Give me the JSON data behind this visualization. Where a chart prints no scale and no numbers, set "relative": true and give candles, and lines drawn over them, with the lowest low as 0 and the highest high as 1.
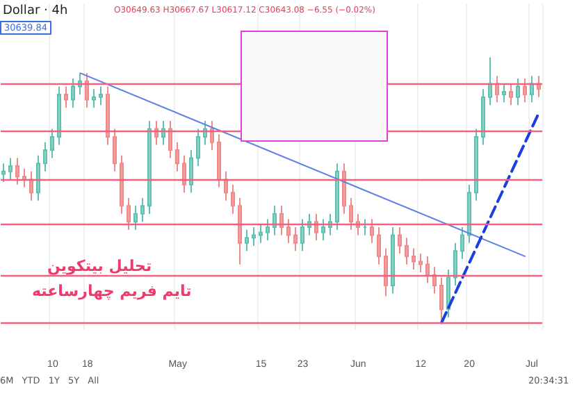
{
  "chart_data": {
    "type": "candlestick",
    "title": "Dollar · 4h",
    "relative": true,
    "categories": [
      null,
      null,
      null,
      null,
      null,
      null,
      null,
      "10",
      null,
      null,
      null,
      null,
      "18",
      null,
      null,
      null,
      null,
      null,
      null,
      null,
      null,
      null,
      null,
      null,
      null,
      "May",
      null,
      null,
      null,
      null,
      null,
      null,
      null,
      null,
      null,
      null,
      null,
      "15",
      null,
      null,
      null,
      null,
      null,
      "23",
      null,
      null,
      null,
      null,
      null,
      null,
      null,
      "Jun",
      null,
      null,
      null,
      null,
      null,
      null,
      null,
      null,
      "12",
      null,
      null,
      null,
      null,
      null,
      null,
      "20",
      null,
      null,
      null,
      null,
      null,
      null,
      null,
      null,
      "Jul",
      null
    ],
    "ohlc": [
      [
        0.56,
        0.6,
        0.53,
        0.57
      ],
      [
        0.57,
        0.62,
        0.54,
        0.59
      ],
      [
        0.59,
        0.62,
        0.52,
        0.55
      ],
      [
        0.55,
        0.58,
        0.51,
        0.54
      ],
      [
        0.54,
        0.57,
        0.46,
        0.49
      ],
      [
        0.49,
        0.63,
        0.46,
        0.6
      ],
      [
        0.6,
        0.68,
        0.57,
        0.65
      ],
      [
        0.65,
        0.73,
        0.62,
        0.7
      ],
      [
        0.7,
        0.89,
        0.67,
        0.86
      ],
      [
        0.86,
        0.89,
        0.81,
        0.84
      ],
      [
        0.84,
        0.92,
        0.81,
        0.89
      ],
      [
        0.89,
        0.94,
        0.86,
        0.91
      ],
      [
        0.91,
        0.94,
        0.81,
        0.84
      ],
      [
        0.84,
        0.88,
        0.81,
        0.85
      ],
      [
        0.85,
        0.89,
        0.82,
        0.86
      ],
      [
        0.86,
        0.89,
        0.67,
        0.7
      ],
      [
        0.7,
        0.73,
        0.57,
        0.6
      ],
      [
        0.6,
        0.63,
        0.41,
        0.44
      ],
      [
        0.44,
        0.47,
        0.35,
        0.38
      ],
      [
        0.38,
        0.44,
        0.35,
        0.41
      ],
      [
        0.41,
        0.47,
        0.38,
        0.44
      ],
      [
        0.44,
        0.76,
        0.41,
        0.73
      ],
      [
        0.73,
        0.76,
        0.67,
        0.7
      ],
      [
        0.7,
        0.76,
        0.67,
        0.73
      ],
      [
        0.73,
        0.76,
        0.62,
        0.65
      ],
      [
        0.65,
        0.68,
        0.57,
        0.6
      ],
      [
        0.6,
        0.63,
        0.49,
        0.52
      ],
      [
        0.52,
        0.65,
        0.49,
        0.62
      ],
      [
        0.62,
        0.73,
        0.59,
        0.7
      ],
      [
        0.7,
        0.76,
        0.67,
        0.73
      ],
      [
        0.73,
        0.76,
        0.65,
        0.68
      ],
      [
        0.68,
        0.71,
        0.51,
        0.54
      ],
      [
        0.54,
        0.57,
        0.46,
        0.49
      ],
      [
        0.49,
        0.52,
        0.41,
        0.44
      ],
      [
        0.44,
        0.47,
        0.22,
        0.3
      ],
      [
        0.3,
        0.35,
        0.27,
        0.32
      ],
      [
        0.32,
        0.36,
        0.29,
        0.33
      ],
      [
        0.33,
        0.37,
        0.3,
        0.34
      ],
      [
        0.34,
        0.39,
        0.31,
        0.36
      ],
      [
        0.36,
        0.44,
        0.33,
        0.41
      ],
      [
        0.41,
        0.44,
        0.33,
        0.36
      ],
      [
        0.36,
        0.39,
        0.3,
        0.33
      ],
      [
        0.33,
        0.36,
        0.27,
        0.3
      ],
      [
        0.3,
        0.39,
        0.27,
        0.36
      ],
      [
        0.36,
        0.41,
        0.33,
        0.38
      ],
      [
        0.38,
        0.41,
        0.31,
        0.34
      ],
      [
        0.34,
        0.39,
        0.31,
        0.36
      ],
      [
        0.36,
        0.41,
        0.33,
        0.38
      ],
      [
        0.38,
        0.6,
        0.35,
        0.57
      ],
      [
        0.57,
        0.6,
        0.41,
        0.44
      ],
      [
        0.44,
        0.47,
        0.35,
        0.38
      ],
      [
        0.38,
        0.41,
        0.33,
        0.36
      ],
      [
        0.36,
        0.39,
        0.33,
        0.36
      ],
      [
        0.36,
        0.39,
        0.3,
        0.33
      ],
      [
        0.33,
        0.36,
        0.22,
        0.25
      ],
      [
        0.25,
        0.28,
        0.1,
        0.14
      ],
      [
        0.14,
        0.36,
        0.11,
        0.33
      ],
      [
        0.33,
        0.36,
        0.26,
        0.29
      ],
      [
        0.29,
        0.32,
        0.22,
        0.25
      ],
      [
        0.25,
        0.28,
        0.2,
        0.23
      ],
      [
        0.23,
        0.26,
        0.19,
        0.22
      ],
      [
        0.22,
        0.25,
        0.15,
        0.18
      ],
      [
        0.18,
        0.21,
        0.11,
        0.14
      ],
      [
        0.14,
        0.17,
        0.0,
        0.05
      ],
      [
        0.05,
        0.2,
        0.02,
        0.17
      ],
      [
        0.17,
        0.3,
        0.14,
        0.27
      ],
      [
        0.27,
        0.36,
        0.24,
        0.33
      ],
      [
        0.33,
        0.52,
        0.3,
        0.49
      ],
      [
        0.49,
        0.73,
        0.46,
        0.7
      ],
      [
        0.7,
        0.88,
        0.67,
        0.85
      ],
      [
        0.85,
        1.0,
        0.82,
        0.9
      ],
      [
        0.9,
        0.93,
        0.83,
        0.86
      ],
      [
        0.86,
        0.9,
        0.83,
        0.87
      ],
      [
        0.87,
        0.9,
        0.82,
        0.85
      ],
      [
        0.85,
        0.92,
        0.82,
        0.89
      ],
      [
        0.89,
        0.92,
        0.83,
        0.86
      ],
      [
        0.86,
        0.93,
        0.83,
        0.9
      ],
      [
        0.9,
        0.93,
        0.85,
        0.88
      ]
    ],
    "series": [
      {
        "type": "line",
        "color": "#5b7fe8",
        "line_style": "solid",
        "values": [
          null,
          null,
          null,
          null,
          null,
          null,
          null,
          null,
          null,
          null,
          null,
          0.94,
          null,
          null,
          null,
          null,
          null,
          null,
          null,
          null,
          null,
          null,
          null,
          null,
          null,
          null,
          null,
          null,
          null,
          null,
          null,
          null,
          null,
          null,
          null,
          null,
          null,
          null,
          null,
          null,
          null,
          null,
          null,
          null,
          null,
          null,
          null,
          null,
          null,
          null,
          null,
          null,
          null,
          null,
          null,
          null,
          null,
          null,
          null,
          null,
          null,
          null,
          null,
          null,
          null,
          null,
          null,
          null,
          null,
          null,
          null,
          null,
          null,
          null,
          null,
          0.25,
          null,
          null
        ]
      },
      {
        "type": "line",
        "color": "#1a3fe0",
        "line_style": "dashed",
        "values": [
          null,
          null,
          null,
          null,
          null,
          null,
          null,
          null,
          null,
          null,
          null,
          null,
          null,
          null,
          null,
          null,
          null,
          null,
          null,
          null,
          null,
          null,
          null,
          null,
          null,
          null,
          null,
          null,
          null,
          null,
          null,
          null,
          null,
          null,
          null,
          null,
          null,
          null,
          null,
          null,
          null,
          null,
          null,
          null,
          null,
          null,
          null,
          null,
          null,
          null,
          null,
          null,
          null,
          null,
          null,
          null,
          null,
          null,
          null,
          null,
          null,
          null,
          null,
          0.0,
          null,
          null,
          null,
          null,
          null,
          null,
          null,
          null,
          null,
          null,
          null,
          null,
          null,
          0.79
        ]
      }
    ],
    "ref_lines": [
      {
        "axis": "y",
        "value": 0.9,
        "color": "#f0607f"
      },
      {
        "axis": "y",
        "value": 0.72,
        "color": "#f0607f"
      },
      {
        "axis": "y",
        "value": 0.54,
        "color": "#f0607f"
      },
      {
        "axis": "y",
        "value": 0.37,
        "color": "#f0607f"
      },
      {
        "axis": "y",
        "value": 0.18,
        "color": "#f0607f"
      },
      {
        "axis": "y",
        "value": 0.0,
        "color": "#f0607f"
      }
    ],
    "grid": true,
    "annotations": [
      "O30649.63 H30667.67 L30617.12 C30643.08 −6.55 (−0.02%)",
      "30639.84",
      "تحلیل بیتکوین",
      "تایم فریم چهارساعته",
      "6M YTD 1Y 5Y All",
      "20:34:31"
    ]
  }
}
